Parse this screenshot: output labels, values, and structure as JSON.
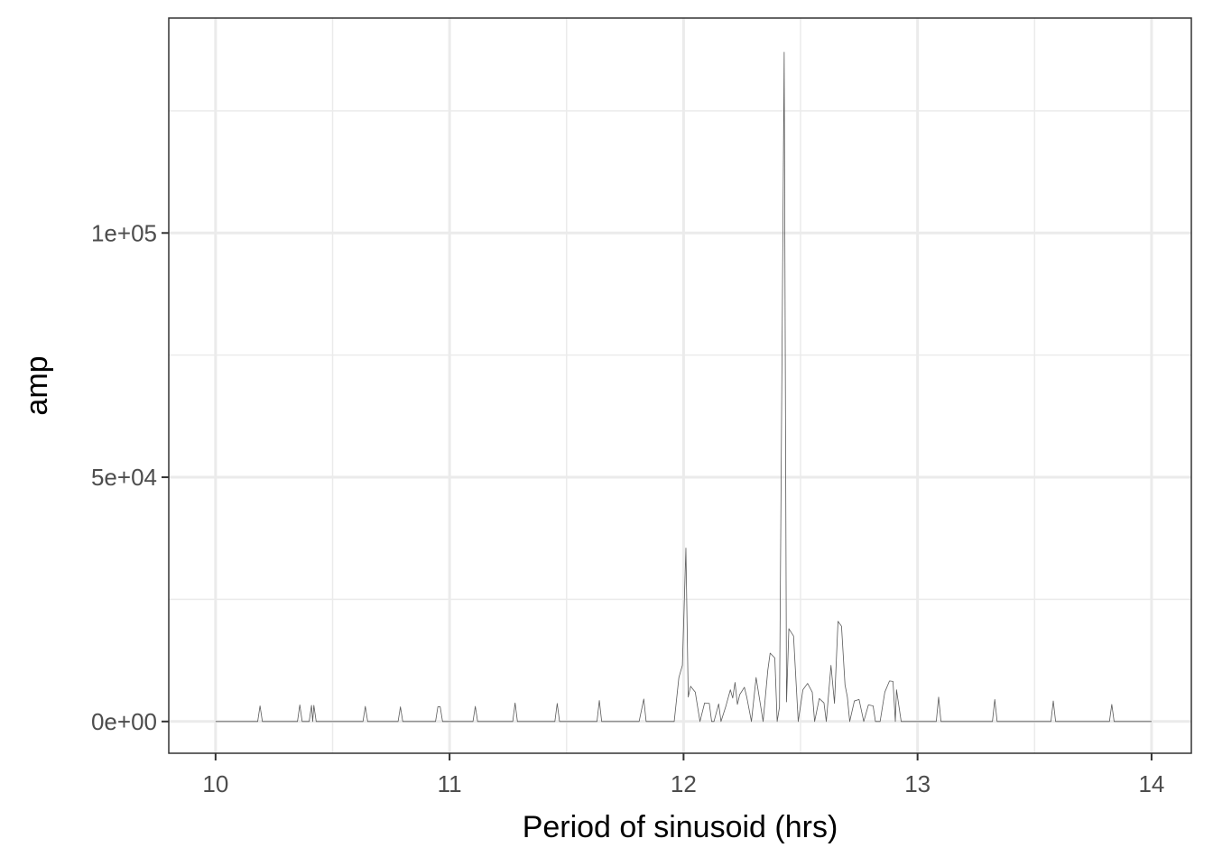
{
  "chart_data": {
    "type": "line",
    "title": "",
    "xlabel": "Period of sinusoid (hrs)",
    "ylabel": "amp",
    "xlim": [
      9.8,
      14.17
    ],
    "ylim": [
      -6500,
      144000
    ],
    "x_major_ticks": [
      10,
      11,
      12,
      13,
      14
    ],
    "x_minor_ticks": [
      10.5,
      11.5,
      12.5,
      13.5
    ],
    "x_tick_labels": [
      "10",
      "11",
      "12",
      "13",
      "14"
    ],
    "y_major_ticks": [
      0,
      50000,
      100000
    ],
    "y_minor_ticks": [
      25000,
      75000,
      125000
    ],
    "y_tick_labels": [
      "0e+00",
      "5e+04",
      "1e+05"
    ],
    "grid": true,
    "colors": {
      "line": "#5a5a5a",
      "grid": "#ebebeb",
      "panel_border": "#333333",
      "axis_text": "#4d4d4d"
    },
    "series": [
      {
        "name": "amp",
        "points": [
          [
            10.0,
            0
          ],
          [
            10.18,
            0
          ],
          [
            10.19,
            3200
          ],
          [
            10.2,
            0
          ],
          [
            10.35,
            0
          ],
          [
            10.36,
            3400
          ],
          [
            10.37,
            0
          ],
          [
            10.4,
            0
          ],
          [
            10.41,
            3300
          ],
          [
            10.415,
            0
          ],
          [
            10.42,
            3300
          ],
          [
            10.43,
            0
          ],
          [
            10.63,
            0
          ],
          [
            10.64,
            3100
          ],
          [
            10.65,
            0
          ],
          [
            10.78,
            0
          ],
          [
            10.79,
            3000
          ],
          [
            10.8,
            0
          ],
          [
            10.94,
            0
          ],
          [
            10.95,
            3000
          ],
          [
            10.96,
            3000
          ],
          [
            10.97,
            0
          ],
          [
            11.1,
            0
          ],
          [
            11.11,
            3100
          ],
          [
            11.12,
            0
          ],
          [
            11.27,
            0
          ],
          [
            11.28,
            3800
          ],
          [
            11.29,
            0
          ],
          [
            11.45,
            0
          ],
          [
            11.46,
            3700
          ],
          [
            11.47,
            0
          ],
          [
            11.63,
            0
          ],
          [
            11.64,
            4300
          ],
          [
            11.65,
            0
          ],
          [
            11.81,
            0
          ],
          [
            11.83,
            4600
          ],
          [
            11.84,
            0
          ],
          [
            11.96,
            0
          ],
          [
            11.98,
            9000
          ],
          [
            11.995,
            11500
          ],
          [
            12.01,
            35500
          ],
          [
            12.02,
            5000
          ],
          [
            12.03,
            7200
          ],
          [
            12.05,
            6000
          ],
          [
            12.07,
            0
          ],
          [
            12.09,
            3800
          ],
          [
            12.11,
            3700
          ],
          [
            12.12,
            0
          ],
          [
            12.13,
            0
          ],
          [
            12.15,
            3600
          ],
          [
            12.16,
            0
          ],
          [
            12.18,
            3000
          ],
          [
            12.2,
            6500
          ],
          [
            12.21,
            4800
          ],
          [
            12.22,
            8000
          ],
          [
            12.23,
            3500
          ],
          [
            12.24,
            5500
          ],
          [
            12.26,
            7000
          ],
          [
            12.27,
            5000
          ],
          [
            12.29,
            0
          ],
          [
            12.31,
            9000
          ],
          [
            12.32,
            6000
          ],
          [
            12.34,
            0
          ],
          [
            12.36,
            10500
          ],
          [
            12.37,
            14000
          ],
          [
            12.39,
            13000
          ],
          [
            12.4,
            0
          ],
          [
            12.41,
            3000
          ],
          [
            12.43,
            137000
          ],
          [
            12.44,
            4000
          ],
          [
            12.45,
            19000
          ],
          [
            12.47,
            17500
          ],
          [
            12.49,
            0
          ],
          [
            12.51,
            6500
          ],
          [
            12.53,
            7800
          ],
          [
            12.55,
            6000
          ],
          [
            12.56,
            0
          ],
          [
            12.58,
            4700
          ],
          [
            12.6,
            3800
          ],
          [
            12.61,
            0
          ],
          [
            12.63,
            11500
          ],
          [
            12.645,
            3700
          ],
          [
            12.66,
            20500
          ],
          [
            12.675,
            19500
          ],
          [
            12.69,
            7500
          ],
          [
            12.7,
            5000
          ],
          [
            12.71,
            0
          ],
          [
            12.73,
            4200
          ],
          [
            12.75,
            4500
          ],
          [
            12.77,
            0
          ],
          [
            12.79,
            3400
          ],
          [
            12.81,
            3200
          ],
          [
            12.82,
            0
          ],
          [
            12.84,
            0
          ],
          [
            12.86,
            6000
          ],
          [
            12.88,
            8300
          ],
          [
            12.895,
            8200
          ],
          [
            12.905,
            0
          ],
          [
            12.91,
            6500
          ],
          [
            12.93,
            0
          ],
          [
            13.08,
            0
          ],
          [
            13.09,
            5000
          ],
          [
            13.1,
            0
          ],
          [
            13.32,
            0
          ],
          [
            13.33,
            4500
          ],
          [
            13.34,
            0
          ],
          [
            13.57,
            0
          ],
          [
            13.58,
            4200
          ],
          [
            13.59,
            0
          ],
          [
            13.82,
            0
          ],
          [
            13.83,
            3500
          ],
          [
            13.84,
            0
          ],
          [
            14.0,
            0
          ]
        ]
      }
    ]
  }
}
